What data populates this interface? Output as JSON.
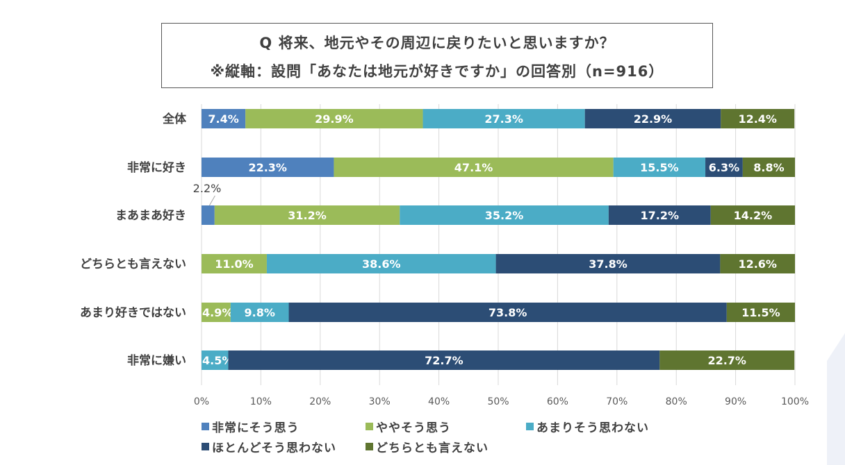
{
  "chart_data": {
    "type": "bar",
    "orientation": "horizontal",
    "stacked": true,
    "percent": true,
    "title": "Q 将来、地元やその周辺に戻りたいと思いますか？",
    "subtitle": "※縦軸：設問「あなたは地元が好きですか」の回答別（n=916）",
    "categories": [
      "全体",
      "非常に好き",
      "まあまあ好き",
      "どちらとも言えない",
      "あまり好きではない",
      "非常に嫌い"
    ],
    "series": [
      {
        "name": "非常にそう思う",
        "color": "#4f81bd",
        "values": [
          7.4,
          22.3,
          2.2,
          0,
          0,
          0
        ]
      },
      {
        "name": "ややそう思う",
        "color": "#9bbb59",
        "values": [
          29.9,
          47.1,
          31.2,
          11.0,
          4.9,
          0
        ]
      },
      {
        "name": "あまりそう思わない",
        "color": "#4bacc6",
        "values": [
          27.3,
          15.5,
          35.2,
          38.6,
          9.8,
          4.5
        ]
      },
      {
        "name": "ほとんどそう思わない",
        "color": "#2c4d75",
        "values": [
          22.9,
          6.3,
          17.2,
          37.8,
          73.8,
          72.7
        ]
      },
      {
        "name": "どちらとも言えない",
        "color": "#5f7530",
        "values": [
          12.4,
          8.8,
          14.2,
          12.6,
          11.5,
          22.7
        ]
      }
    ],
    "labels": [
      [
        "7.4%",
        "29.9%",
        "27.3%",
        "22.9%",
        "12.4%"
      ],
      [
        "22.3%",
        "47.1%",
        "15.5%",
        "6.3%",
        "8.8%"
      ],
      [
        "2.2%",
        "31.2%",
        "35.2%",
        "17.2%",
        "14.2%"
      ],
      [
        "",
        "11.0%",
        "38.6%",
        "37.8%",
        "12.6%"
      ],
      [
        "",
        "4.9%",
        "9.8%",
        "73.8%",
        "11.5%"
      ],
      [
        "",
        "",
        "4.5%",
        "72.7%",
        "22.7%"
      ]
    ],
    "xlim": [
      0,
      100
    ],
    "xticks": [
      "0%",
      "10%",
      "20%",
      "30%",
      "40%",
      "50%",
      "60%",
      "70%",
      "80%",
      "90%",
      "100%"
    ],
    "grid": true,
    "legend_position": "bottom",
    "label_color": "#ffffff",
    "outside_label_color": "#404040",
    "grid_color": "#d9d9d9",
    "axis_text_color": "#595959"
  }
}
